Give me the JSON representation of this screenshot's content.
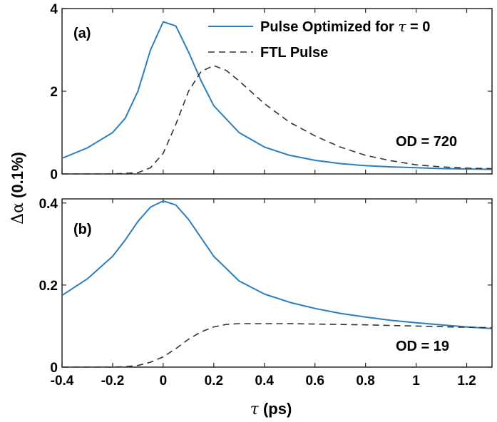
{
  "colors": {
    "series_solid": "#2a7ec0",
    "series_dashed": "#333333",
    "axis": "#262626"
  },
  "ylabel": {
    "symbol": "Δα",
    "unit": "(0.1%)"
  },
  "xlabel": {
    "symbol": "τ",
    "unit": "(ps)"
  },
  "legend": {
    "solid_label": "Pulse Optimized for",
    "solid_symbol": "τ",
    "solid_suffix": "= 0",
    "dashed_label": "FTL Pulse"
  },
  "chart_data": [
    {
      "type": "line",
      "panel": "(a)",
      "annotation": "OD = 720",
      "xlim": [
        -0.4,
        1.3
      ],
      "ylim": [
        0,
        4
      ],
      "xticks": [
        -0.4,
        -0.2,
        0,
        0.2,
        0.4,
        0.6,
        0.8,
        1,
        1.2
      ],
      "yticks": [
        0,
        2,
        4
      ],
      "ytick_labels": [
        "0",
        "2",
        "4"
      ],
      "series": [
        {
          "name": "Pulse Optimized for τ = 0",
          "style": "solid",
          "x": [
            -0.4,
            -0.3,
            -0.2,
            -0.15,
            -0.1,
            -0.05,
            0,
            0.05,
            0.1,
            0.15,
            0.2,
            0.3,
            0.4,
            0.5,
            0.6,
            0.7,
            0.8,
            0.9,
            1.0,
            1.1,
            1.2,
            1.3
          ],
          "y": [
            0.38,
            0.63,
            1.0,
            1.35,
            2.0,
            3.0,
            3.68,
            3.58,
            2.95,
            2.25,
            1.65,
            1.0,
            0.65,
            0.45,
            0.33,
            0.25,
            0.2,
            0.17,
            0.15,
            0.13,
            0.12,
            0.11
          ]
        },
        {
          "name": "FTL Pulse",
          "style": "dashed",
          "x": [
            -0.4,
            -0.2,
            -0.1,
            -0.05,
            0,
            0.05,
            0.1,
            0.15,
            0.2,
            0.25,
            0.3,
            0.4,
            0.5,
            0.6,
            0.7,
            0.8,
            0.9,
            1.0,
            1.1,
            1.2,
            1.3
          ],
          "y": [
            0,
            0,
            0.03,
            0.15,
            0.5,
            1.2,
            2.0,
            2.48,
            2.62,
            2.5,
            2.25,
            1.7,
            1.25,
            0.92,
            0.65,
            0.45,
            0.32,
            0.22,
            0.17,
            0.14,
            0.13
          ]
        }
      ]
    },
    {
      "type": "line",
      "panel": "(b)",
      "annotation": "OD = 19",
      "xlim": [
        -0.4,
        1.3
      ],
      "ylim": [
        0,
        0.41
      ],
      "xticks": [
        -0.4,
        -0.2,
        0,
        0.2,
        0.4,
        0.6,
        0.8,
        1,
        1.2
      ],
      "xtick_labels": [
        "-0.4",
        "-0.2",
        "0",
        "0.2",
        "0.4",
        "0.6",
        "0.8",
        "1",
        "1.2"
      ],
      "yticks": [
        0,
        0.2,
        0.4
      ],
      "ytick_labels": [
        "0",
        "0.2",
        "0.4"
      ],
      "series": [
        {
          "name": "Pulse Optimized for τ = 0",
          "style": "solid",
          "x": [
            -0.4,
            -0.3,
            -0.2,
            -0.15,
            -0.1,
            -0.05,
            0,
            0.05,
            0.1,
            0.15,
            0.2,
            0.3,
            0.4,
            0.5,
            0.6,
            0.7,
            0.8,
            0.9,
            1.0,
            1.1,
            1.2,
            1.3
          ],
          "y": [
            0.175,
            0.215,
            0.27,
            0.31,
            0.355,
            0.39,
            0.405,
            0.395,
            0.36,
            0.315,
            0.27,
            0.21,
            0.178,
            0.158,
            0.143,
            0.131,
            0.122,
            0.114,
            0.108,
            0.103,
            0.098,
            0.094
          ]
        },
        {
          "name": "FTL Pulse",
          "style": "dashed",
          "x": [
            -0.4,
            -0.2,
            -0.15,
            -0.1,
            -0.05,
            0,
            0.05,
            0.1,
            0.15,
            0.2,
            0.25,
            0.3,
            0.4,
            0.5,
            0.6,
            0.8,
            1.0,
            1.2,
            1.3
          ],
          "y": [
            0,
            0,
            0.001,
            0.004,
            0.012,
            0.025,
            0.045,
            0.068,
            0.086,
            0.098,
            0.104,
            0.106,
            0.106,
            0.106,
            0.105,
            0.103,
            0.1,
            0.097,
            0.096
          ]
        }
      ]
    }
  ]
}
